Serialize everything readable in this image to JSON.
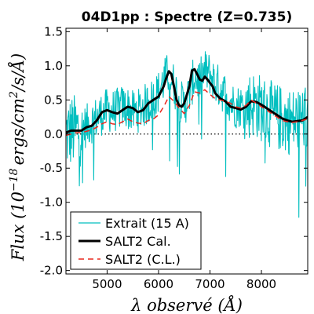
{
  "chart_data": {
    "type": "line",
    "title": "04D1pp : Spectre (Z=0.735)",
    "xlabel": "λ observé (Å)",
    "ylabel": "Flux (10^-18 ergs/cm^2/s/Å)",
    "ylabel_main": "Flux (10",
    "ylabel_sup": "−18",
    "ylabel_rest": "ergs/cm",
    "ylabel_sup2": "2",
    "ylabel_tail": "/s/Å)",
    "xlim": [
      4200,
      8900
    ],
    "ylim": [
      -2.05,
      1.55
    ],
    "xticks": [
      5000,
      6000,
      7000,
      8000
    ],
    "yticks": [
      1.5,
      1.0,
      0.5,
      0.0,
      -0.5,
      -1.0,
      -1.5,
      -2.0
    ],
    "xtick_labels": [
      "5000",
      "6000",
      "7000",
      "8000"
    ],
    "ytick_labels": [
      "1.5",
      "1.0",
      "0.5",
      "0.0",
      "-0.5",
      "-1.0",
      "-1.5",
      "-2.0"
    ],
    "legend_position": "lower-left",
    "series": [
      {
        "name": "Extrait (15 A)",
        "color": "#00BFBF",
        "style": "solid",
        "noisy": true,
        "x": [
          4200,
          4300,
          4400,
          4500,
          4600,
          4700,
          4800,
          4900,
          5000,
          5100,
          5200,
          5300,
          5400,
          5500,
          5600,
          5700,
          5800,
          5900,
          6000,
          6100,
          6200,
          6300,
          6400,
          6500,
          6600,
          6700,
          6800,
          6900,
          7000,
          7100,
          7200,
          7300,
          7400,
          7500,
          7600,
          7700,
          7800,
          7900,
          8000,
          8100,
          8200,
          8300,
          8400,
          8500,
          8600,
          8700,
          8800,
          8900
        ],
        "y": [
          0.0,
          0.03,
          0.05,
          0.08,
          0.12,
          0.18,
          0.24,
          0.3,
          0.35,
          0.33,
          0.36,
          0.4,
          0.38,
          0.32,
          0.34,
          0.4,
          0.45,
          0.52,
          0.62,
          0.78,
          0.9,
          0.72,
          0.5,
          0.42,
          0.6,
          0.85,
          0.78,
          0.92,
          0.88,
          0.75,
          0.68,
          0.58,
          0.48,
          0.4,
          0.42,
          0.38,
          0.45,
          0.43,
          0.38,
          0.33,
          0.28,
          0.25,
          0.22,
          0.2,
          0.18,
          0.2,
          0.24,
          0.26
        ]
      },
      {
        "name": "SALT2 Cal.",
        "color": "#000000",
        "style": "solid",
        "x": [
          4200,
          4300,
          4400,
          4500,
          4600,
          4700,
          4800,
          4900,
          5000,
          5100,
          5200,
          5300,
          5400,
          5500,
          5600,
          5700,
          5800,
          5900,
          6000,
          6100,
          6150,
          6200,
          6250,
          6300,
          6350,
          6400,
          6450,
          6500,
          6600,
          6650,
          6700,
          6750,
          6800,
          6850,
          6900,
          6950,
          7000,
          7050,
          7100,
          7200,
          7300,
          7400,
          7500,
          7600,
          7700,
          7800,
          7900,
          8000,
          8100,
          8200,
          8300,
          8400,
          8500,
          8600,
          8700,
          8800,
          8900
        ],
        "y": [
          0.02,
          0.05,
          0.05,
          0.05,
          0.1,
          0.12,
          0.2,
          0.32,
          0.35,
          0.32,
          0.3,
          0.35,
          0.4,
          0.38,
          0.32,
          0.35,
          0.45,
          0.5,
          0.55,
          0.7,
          0.82,
          0.92,
          0.88,
          0.7,
          0.5,
          0.42,
          0.4,
          0.45,
          0.7,
          0.93,
          0.95,
          0.88,
          0.8,
          0.78,
          0.84,
          0.8,
          0.75,
          0.7,
          0.6,
          0.52,
          0.48,
          0.4,
          0.38,
          0.36,
          0.4,
          0.48,
          0.47,
          0.43,
          0.38,
          0.33,
          0.28,
          0.23,
          0.2,
          0.18,
          0.19,
          0.2,
          0.25
        ]
      },
      {
        "name": "SALT2 (C.L.)",
        "color": "#E8281E",
        "style": "dashed",
        "x": [
          4200,
          4300,
          4400,
          4500,
          4600,
          4700,
          4800,
          4900,
          5000,
          5100,
          5200,
          5300,
          5400,
          5500,
          5600,
          5700,
          5800,
          5900,
          6000,
          6100,
          6200,
          6300,
          6400,
          6500,
          6600,
          6700,
          6800,
          6900,
          7000,
          7100,
          7200,
          7300,
          7400,
          7500,
          7600,
          7700,
          7800,
          7900,
          8000,
          8100,
          8200,
          8300,
          8400,
          8500,
          8600,
          8700,
          8800,
          8900
        ],
        "y": [
          -0.02,
          0.0,
          0.02,
          0.02,
          0.04,
          0.06,
          0.1,
          0.15,
          0.18,
          0.15,
          0.14,
          0.18,
          0.22,
          0.18,
          0.16,
          0.15,
          0.2,
          0.22,
          0.28,
          0.4,
          0.55,
          0.48,
          0.38,
          0.3,
          0.42,
          0.62,
          0.6,
          0.65,
          0.58,
          0.52,
          0.5,
          0.48,
          0.45,
          0.4,
          0.38,
          0.42,
          0.5,
          0.45,
          0.4,
          0.35,
          0.3,
          0.25,
          0.2,
          0.18,
          0.17,
          0.18,
          0.2,
          0.22
        ]
      }
    ],
    "reference_line": {
      "y": 0.0,
      "style": "dotted",
      "color": "#000000"
    }
  }
}
